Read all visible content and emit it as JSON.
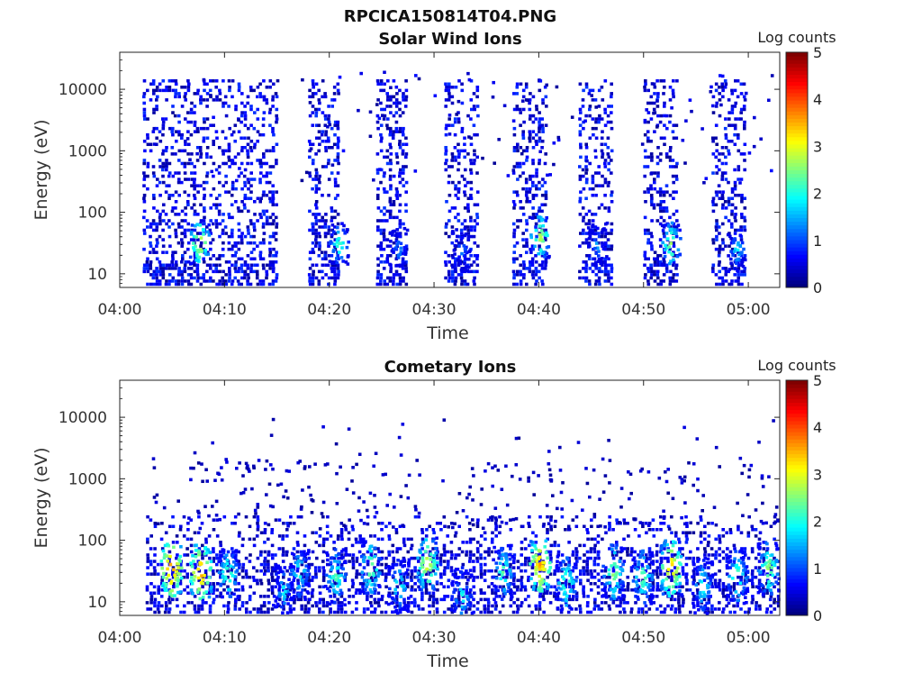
{
  "figure_title": "RPCICA150814T04.PNG",
  "chart_data": [
    {
      "type": "heatmap",
      "title": "Solar Wind Ions",
      "xlabel": "Time",
      "ylabel": "Energy (eV)",
      "x_ticks": [
        "04:00",
        "04:10",
        "04:20",
        "04:30",
        "04:40",
        "04:50",
        "05:00"
      ],
      "x_range": [
        "04:00",
        "05:03"
      ],
      "y_scale": "log",
      "y_ticks": [
        "10",
        "100",
        "1000",
        "10000"
      ],
      "y_range": [
        6,
        40000
      ],
      "colorbar": {
        "label": "Log counts",
        "range": [
          0,
          5
        ],
        "ticks": [
          "0",
          "1",
          "2",
          "3",
          "4",
          "5"
        ],
        "colormap": "jet"
      },
      "activity_bursts_minutes": [
        {
          "start": 2.2,
          "end": 15.0,
          "emin": 6,
          "emax": 15000,
          "peak_minute": 7.5,
          "peak_energy": 32,
          "peak_log_counts": 3.2
        },
        {
          "start": 18.0,
          "end": 21.0,
          "emin": 6,
          "emax": 15000,
          "peak_minute": 20.8,
          "peak_energy": 30,
          "peak_log_counts": 2.4
        },
        {
          "start": 24.5,
          "end": 27.5,
          "emin": 6,
          "emax": 15000,
          "peak_minute": 26.5,
          "peak_energy": 25,
          "peak_log_counts": 1.6
        },
        {
          "start": 31.0,
          "end": 34.0,
          "emin": 6,
          "emax": 15000,
          "peak_minute": 32.5,
          "peak_energy": 25,
          "peak_log_counts": 1.5
        },
        {
          "start": 37.5,
          "end": 40.5,
          "emin": 6,
          "emax": 15000,
          "peak_minute": 40.0,
          "peak_energy": 40,
          "peak_log_counts": 2.9
        },
        {
          "start": 43.8,
          "end": 47.0,
          "emin": 6,
          "emax": 15000,
          "peak_minute": 45.5,
          "peak_energy": 30,
          "peak_log_counts": 1.7
        },
        {
          "start": 50.0,
          "end": 53.0,
          "emin": 6,
          "emax": 15000,
          "peak_minute": 52.5,
          "peak_energy": 30,
          "peak_log_counts": 2.8
        },
        {
          "start": 56.5,
          "end": 59.5,
          "emin": 6,
          "emax": 15000,
          "peak_minute": 58.8,
          "peak_energy": 25,
          "peak_log_counts": 2.0
        }
      ]
    },
    {
      "type": "heatmap",
      "title": "Cometary Ions",
      "xlabel": "Time",
      "ylabel": "Energy (eV)",
      "x_ticks": [
        "04:00",
        "04:10",
        "04:20",
        "04:30",
        "04:40",
        "04:50",
        "05:00"
      ],
      "x_range": [
        "04:00",
        "05:03"
      ],
      "y_scale": "log",
      "y_ticks": [
        "10",
        "100",
        "1000",
        "10000"
      ],
      "y_range": [
        6,
        40000
      ],
      "colorbar": {
        "label": "Log counts",
        "range": [
          0,
          5
        ],
        "ticks": [
          "0",
          "1",
          "2",
          "3",
          "4",
          "5"
        ],
        "colormap": "jet"
      },
      "background_band_energy_eV": [
        6,
        200
      ],
      "hot_spots": [
        {
          "minute": 4.8,
          "energy": 35,
          "log_counts": 3.9
        },
        {
          "minute": 7.6,
          "energy": 30,
          "log_counts": 3.8
        },
        {
          "minute": 10.2,
          "energy": 28,
          "log_counts": 2.6
        },
        {
          "minute": 15.5,
          "energy": 15,
          "log_counts": 2.0
        },
        {
          "minute": 17.0,
          "energy": 30,
          "log_counts": 2.3
        },
        {
          "minute": 20.5,
          "energy": 25,
          "log_counts": 2.5
        },
        {
          "minute": 23.8,
          "energy": 35,
          "log_counts": 2.8
        },
        {
          "minute": 26.5,
          "energy": 18,
          "log_counts": 2.3
        },
        {
          "minute": 29.2,
          "energy": 40,
          "log_counts": 3.2
        },
        {
          "minute": 32.5,
          "energy": 12,
          "log_counts": 2.2
        },
        {
          "minute": 36.5,
          "energy": 30,
          "log_counts": 2.5
        },
        {
          "minute": 40.0,
          "energy": 40,
          "log_counts": 3.7
        },
        {
          "minute": 42.5,
          "energy": 20,
          "log_counts": 2.6
        },
        {
          "minute": 47.0,
          "energy": 30,
          "log_counts": 2.8
        },
        {
          "minute": 49.8,
          "energy": 25,
          "log_counts": 2.6
        },
        {
          "minute": 52.5,
          "energy": 35,
          "log_counts": 3.6
        },
        {
          "minute": 55.5,
          "energy": 18,
          "log_counts": 2.3
        },
        {
          "minute": 58.8,
          "energy": 25,
          "log_counts": 2.6
        },
        {
          "minute": 61.8,
          "energy": 35,
          "log_counts": 2.8
        }
      ]
    }
  ]
}
